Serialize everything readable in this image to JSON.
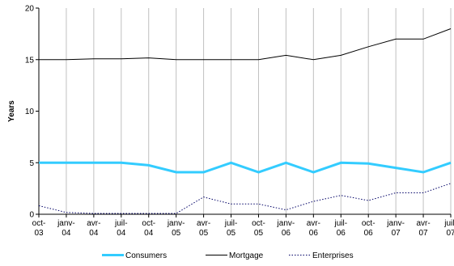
{
  "chart_data": {
    "type": "line",
    "ylabel": "Years",
    "ylim": [
      0,
      20
    ],
    "yticks": [
      0,
      5,
      10,
      15,
      20
    ],
    "grid": "vertical",
    "legend_position": "bottom",
    "x_labels": [
      [
        "oct-",
        "03"
      ],
      [
        "janv-",
        "04"
      ],
      [
        "avr-",
        "04"
      ],
      [
        "juil-",
        "04"
      ],
      [
        "oct-",
        "04"
      ],
      [
        "janv-",
        "05"
      ],
      [
        "avr-",
        "05"
      ],
      [
        "juil-",
        "05"
      ],
      [
        "oct-",
        "05"
      ],
      [
        "janv-",
        "06"
      ],
      [
        "avr-",
        "06"
      ],
      [
        "juil-",
        "06"
      ],
      [
        "oct-",
        "06"
      ],
      [
        "janv-",
        "07"
      ],
      [
        "avr-",
        "07"
      ],
      [
        "juil-",
        "07"
      ]
    ],
    "series": [
      {
        "name": "Consumers",
        "color": "#33ccff",
        "style": "solid-thick",
        "values": [
          5,
          5,
          5,
          5,
          4.75,
          4.08,
          4.08,
          5,
          4.08,
          5,
          4.08,
          5,
          4.92,
          4.5,
          4.08,
          5
        ]
      },
      {
        "name": "Mortgage",
        "color": "#000000",
        "style": "solid",
        "values": [
          15,
          15,
          15.08,
          15.08,
          15.17,
          15,
          15,
          15,
          15,
          15.42,
          15,
          15.42,
          16.25,
          17,
          17,
          18
        ]
      },
      {
        "name": "Enterprises",
        "color": "#000066",
        "style": "dotted",
        "values": [
          0.83,
          0.17,
          0.08,
          0.08,
          0.08,
          0.08,
          1.67,
          1,
          1,
          0.42,
          1.25,
          1.83,
          1.33,
          2.08,
          2.08,
          3
        ]
      }
    ]
  }
}
